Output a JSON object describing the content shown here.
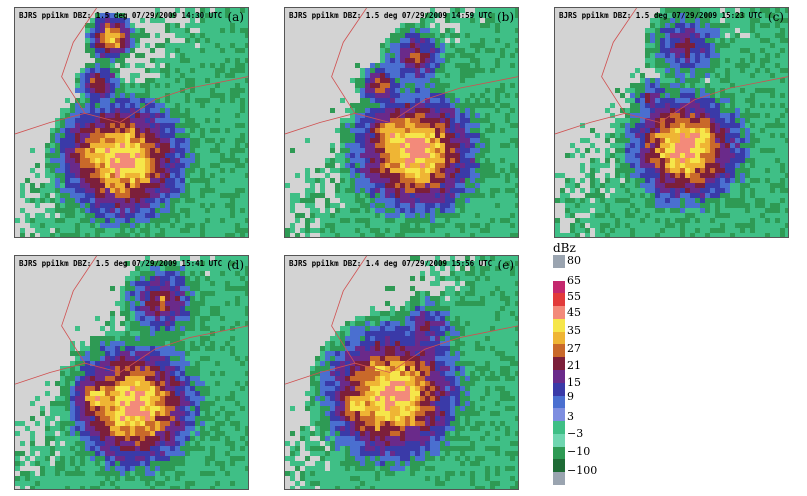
{
  "panels": [
    {
      "id": "a",
      "header": "BJRS ppi1km DBZ: 1.5 deg 07/29/2009 14:30 UTC",
      "letter": "(a)"
    },
    {
      "id": "b",
      "header": "BJRS ppi1km DBZ: 1.5 deg 07/29/2009 14:59 UTC",
      "letter": "(b)"
    },
    {
      "id": "c",
      "header": "BJRS ppi1km DBZ: 1.5 deg 07/29/2009 15:23 UTC",
      "letter": "(c)"
    },
    {
      "id": "d",
      "header": "BJRS ppi1km DBZ: 1.5 deg 07/29/2009 15:41 UTC",
      "letter": "(d)"
    },
    {
      "id": "e",
      "header": "BJRS ppi1km DBZ: 1.4 deg 07/29/2009 15:56 UTC",
      "letter": "(e)"
    }
  ],
  "scale": {
    "unit": "dBz",
    "labels": [
      "80",
      "65",
      "55",
      "45",
      "35",
      "27",
      "21",
      "15",
      "9",
      "3",
      "−3",
      "−10",
      "−100"
    ],
    "colors": [
      "#9aa4b0",
      "#ffffff",
      "#c4286e",
      "#e23a3a",
      "#f38a7a",
      "#f6e64a",
      "#efb534",
      "#c9692a",
      "#7c1f3a",
      "#6a2a8a",
      "#3a3aa8",
      "#4a6fd0",
      "#7e8ee0",
      "#3fbf86",
      "#6fd6b0",
      "#2e9a54",
      "#1f6b36",
      "#9aa4b0"
    ]
  },
  "palette": {
    "background": "#d3d3d3",
    "border_line": "#d05050"
  }
}
